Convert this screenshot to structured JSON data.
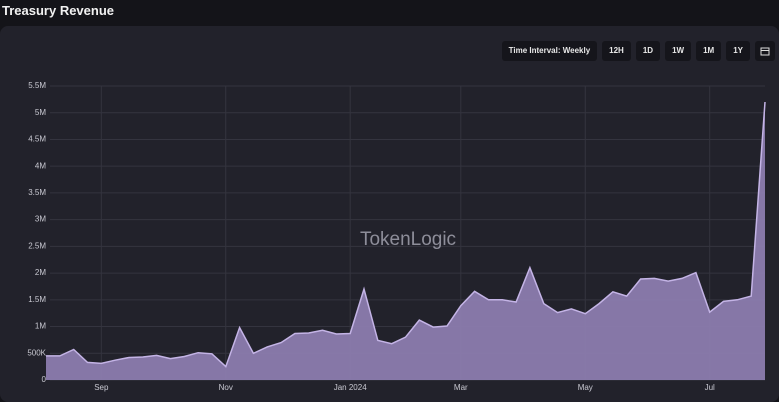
{
  "chart_data": {
    "type": "area",
    "title": "Treasury Revenue",
    "watermark": "TokenLogic",
    "controls": {
      "interval": "Time Interval: Weekly",
      "ranges": [
        "12H",
        "1D",
        "1W",
        "1M",
        "1Y"
      ]
    },
    "categories": [
      null,
      null,
      null,
      null,
      "Sep",
      null,
      null,
      null,
      null,
      null,
      null,
      null,
      null,
      "Nov",
      null,
      null,
      null,
      null,
      null,
      null,
      null,
      null,
      "Jan 2024",
      null,
      null,
      null,
      null,
      null,
      null,
      null,
      "Mar",
      null,
      null,
      null,
      null,
      null,
      null,
      null,
      null,
      "May",
      null,
      null,
      null,
      null,
      null,
      null,
      null,
      null,
      "Jul",
      null,
      null,
      null,
      null
    ],
    "series": [
      {
        "name": "Treasury Revenue",
        "color": "#8c7cae",
        "values": [
          450000,
          450000,
          570000,
          330000,
          310000,
          370000,
          420000,
          430000,
          460000,
          400000,
          440000,
          510000,
          490000,
          250000,
          980000,
          500000,
          620000,
          700000,
          870000,
          880000,
          930000,
          860000,
          870000,
          1700000,
          740000,
          680000,
          800000,
          1120000,
          990000,
          1010000,
          1390000,
          1660000,
          1500000,
          1500000,
          1460000,
          2100000,
          1430000,
          1260000,
          1330000,
          1240000,
          1430000,
          1650000,
          1570000,
          1890000,
          1900000,
          1850000,
          1900000,
          2010000,
          1270000,
          1470000,
          1500000,
          1570000,
          5200000
        ]
      }
    ],
    "ylim": [
      0,
      5500000
    ],
    "yticks": [
      0,
      {
        "value": 500000,
        "label": "500K"
      },
      {
        "value": 1000000,
        "label": "1M"
      },
      {
        "value": 1500000,
        "label": "1.5M"
      },
      {
        "value": 2000000,
        "label": "2M"
      },
      {
        "value": 2500000,
        "label": "2.5M"
      },
      {
        "value": 3000000,
        "label": "3M"
      },
      {
        "value": 3500000,
        "label": "3.5M"
      },
      {
        "value": 4000000,
        "label": "4M"
      },
      {
        "value": 4500000,
        "label": "4.5M"
      },
      {
        "value": 5000000,
        "label": "5M"
      },
      {
        "value": 5500000,
        "label": "5.5M"
      }
    ],
    "grid": true
  }
}
